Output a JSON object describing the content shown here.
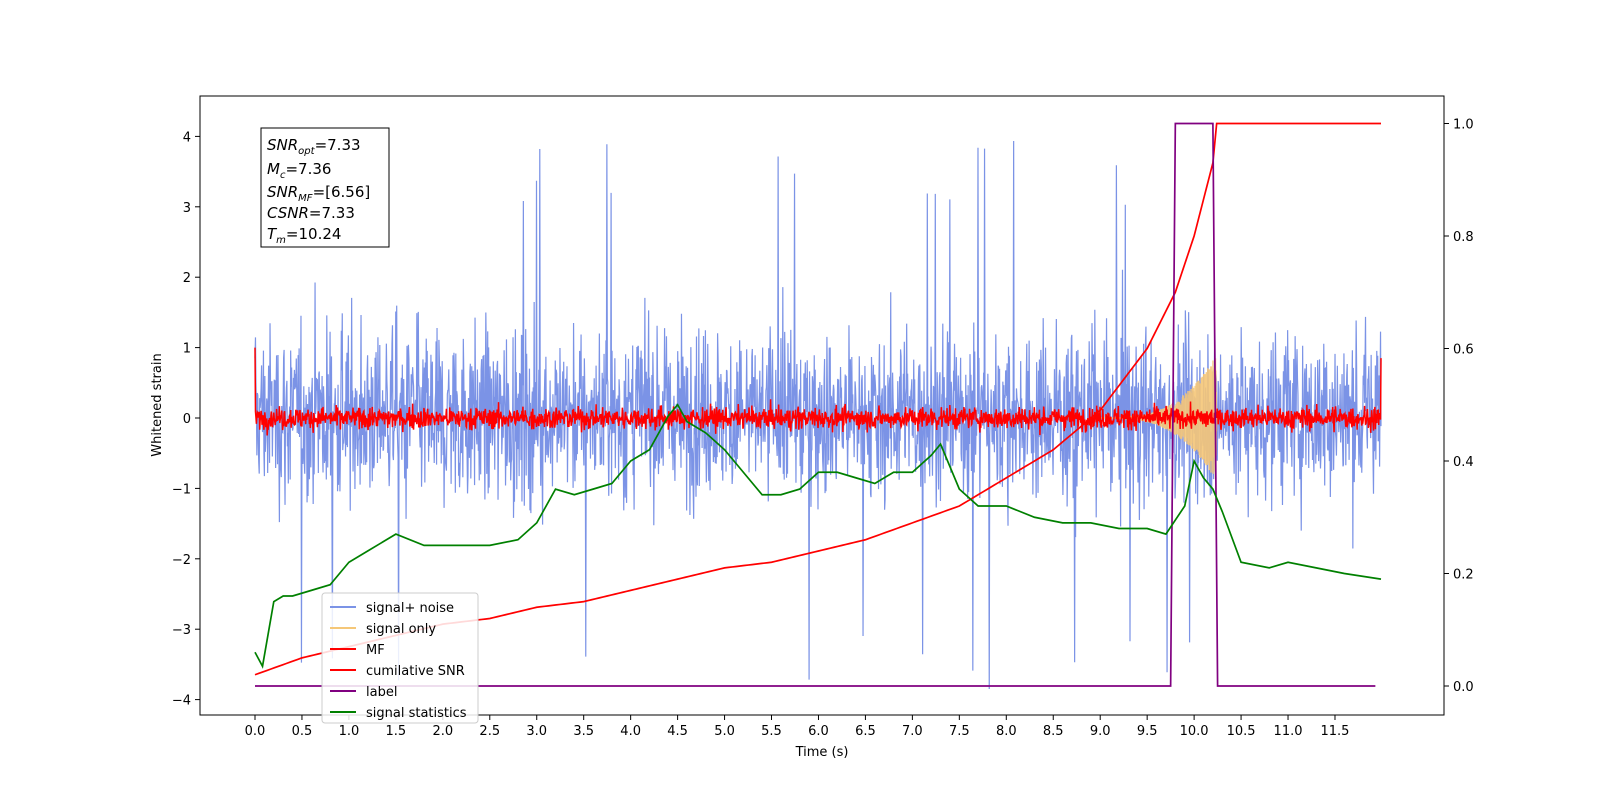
{
  "chart_data": {
    "type": "line",
    "xlabel": "Time (s)",
    "ylabel": "Whitened strain",
    "xlim": [
      -0.6,
      12.6
    ],
    "ylim_left": [
      -4.2,
      4.55
    ],
    "ylim_right": [
      -0.05,
      1.05
    ],
    "x_ticks": [
      "0.0",
      "0.5",
      "1.0",
      "1.5",
      "2.0",
      "2.5",
      "3.0",
      "3.5",
      "4.0",
      "4.5",
      "5.0",
      "5.5",
      "6.0",
      "6.5",
      "7.0",
      "7.5",
      "8.0",
      "8.5",
      "9.0",
      "9.5",
      "10.0",
      "10.5",
      "11.0",
      "11.5"
    ],
    "y_left_ticks": [
      "4",
      "3",
      "2",
      "1",
      "0",
      "−1",
      "−2",
      "−3",
      "−4"
    ],
    "y_right_ticks": [
      "1.0",
      "0.8",
      "0.6",
      "0.4",
      "0.2",
      "0.0"
    ],
    "grid": false,
    "legend_placement": "lower-left",
    "info_box": {
      "snr_opt": "=7.33",
      "mc": "=7.36",
      "snr_mf": "=[6.56]",
      "csnr": "=7.33",
      "tm": "=10.24"
    },
    "series": [
      {
        "name": "signal+ noise",
        "color": "#7b93e6",
        "axis": "left",
        "kind": "noise",
        "x_range": [
          0,
          11.99
        ],
        "amplitude_envelope": [
          -3.85,
          4.18
        ],
        "typical_range": [
          -2.0,
          2.2
        ]
      },
      {
        "name": "signal only",
        "color": "#f5c778",
        "axis": "left",
        "kind": "chirp",
        "x_range": [
          9.0,
          10.24
        ],
        "peak_amplitude": 0.9
      },
      {
        "name": "MF",
        "color": "#ff0000",
        "axis": "left",
        "kind": "noise",
        "x_range": [
          0,
          11.99
        ],
        "typical_range": [
          -0.25,
          0.35
        ],
        "endpoints": [
          1.0,
          0.85
        ]
      },
      {
        "name": "cumilative SNR",
        "color": "#ff0000",
        "axis": "right",
        "x": [
          0,
          0.5,
          1.0,
          1.5,
          2.0,
          2.5,
          3.0,
          3.5,
          4.0,
          4.5,
          5.0,
          5.5,
          6.0,
          6.5,
          7.0,
          7.5,
          8.0,
          8.5,
          9.0,
          9.5,
          9.8,
          10.0,
          10.2,
          10.24,
          11.99
        ],
        "y": [
          0.02,
          0.05,
          0.07,
          0.09,
          0.11,
          0.12,
          0.14,
          0.15,
          0.17,
          0.19,
          0.21,
          0.22,
          0.24,
          0.26,
          0.29,
          0.32,
          0.37,
          0.42,
          0.49,
          0.6,
          0.7,
          0.8,
          0.93,
          1.0,
          1.0
        ]
      },
      {
        "name": "label",
        "color": "#800080",
        "axis": "right",
        "x": [
          0,
          9.75,
          9.8,
          10.2,
          10.25,
          11.93
        ],
        "y": [
          0,
          0,
          1.0,
          1.0,
          0,
          0
        ]
      },
      {
        "name": "signal statistics",
        "color": "#008000",
        "axis": "right",
        "x": [
          0,
          0.08,
          0.2,
          0.3,
          0.4,
          0.6,
          0.8,
          1.0,
          1.2,
          1.5,
          1.8,
          2.0,
          2.3,
          2.5,
          2.8,
          3.0,
          3.2,
          3.4,
          3.6,
          3.8,
          4.0,
          4.2,
          4.4,
          4.5,
          4.6,
          4.8,
          5.0,
          5.2,
          5.4,
          5.6,
          5.8,
          6.0,
          6.2,
          6.4,
          6.6,
          6.8,
          7.0,
          7.2,
          7.3,
          7.5,
          7.7,
          8.0,
          8.3,
          8.6,
          8.9,
          9.2,
          9.5,
          9.7,
          9.9,
          10.0,
          10.1,
          10.2,
          10.3,
          10.5,
          10.8,
          11.0,
          11.3,
          11.6,
          11.99
        ],
        "y": [
          0.06,
          0.035,
          0.15,
          0.16,
          0.16,
          0.17,
          0.18,
          0.22,
          0.24,
          0.27,
          0.25,
          0.25,
          0.25,
          0.25,
          0.26,
          0.29,
          0.35,
          0.34,
          0.35,
          0.36,
          0.4,
          0.42,
          0.48,
          0.5,
          0.47,
          0.45,
          0.42,
          0.38,
          0.34,
          0.34,
          0.35,
          0.38,
          0.38,
          0.37,
          0.36,
          0.38,
          0.38,
          0.41,
          0.43,
          0.35,
          0.32,
          0.32,
          0.3,
          0.29,
          0.29,
          0.28,
          0.28,
          0.27,
          0.32,
          0.4,
          0.37,
          0.35,
          0.31,
          0.22,
          0.21,
          0.22,
          0.21,
          0.2,
          0.19
        ]
      }
    ]
  }
}
